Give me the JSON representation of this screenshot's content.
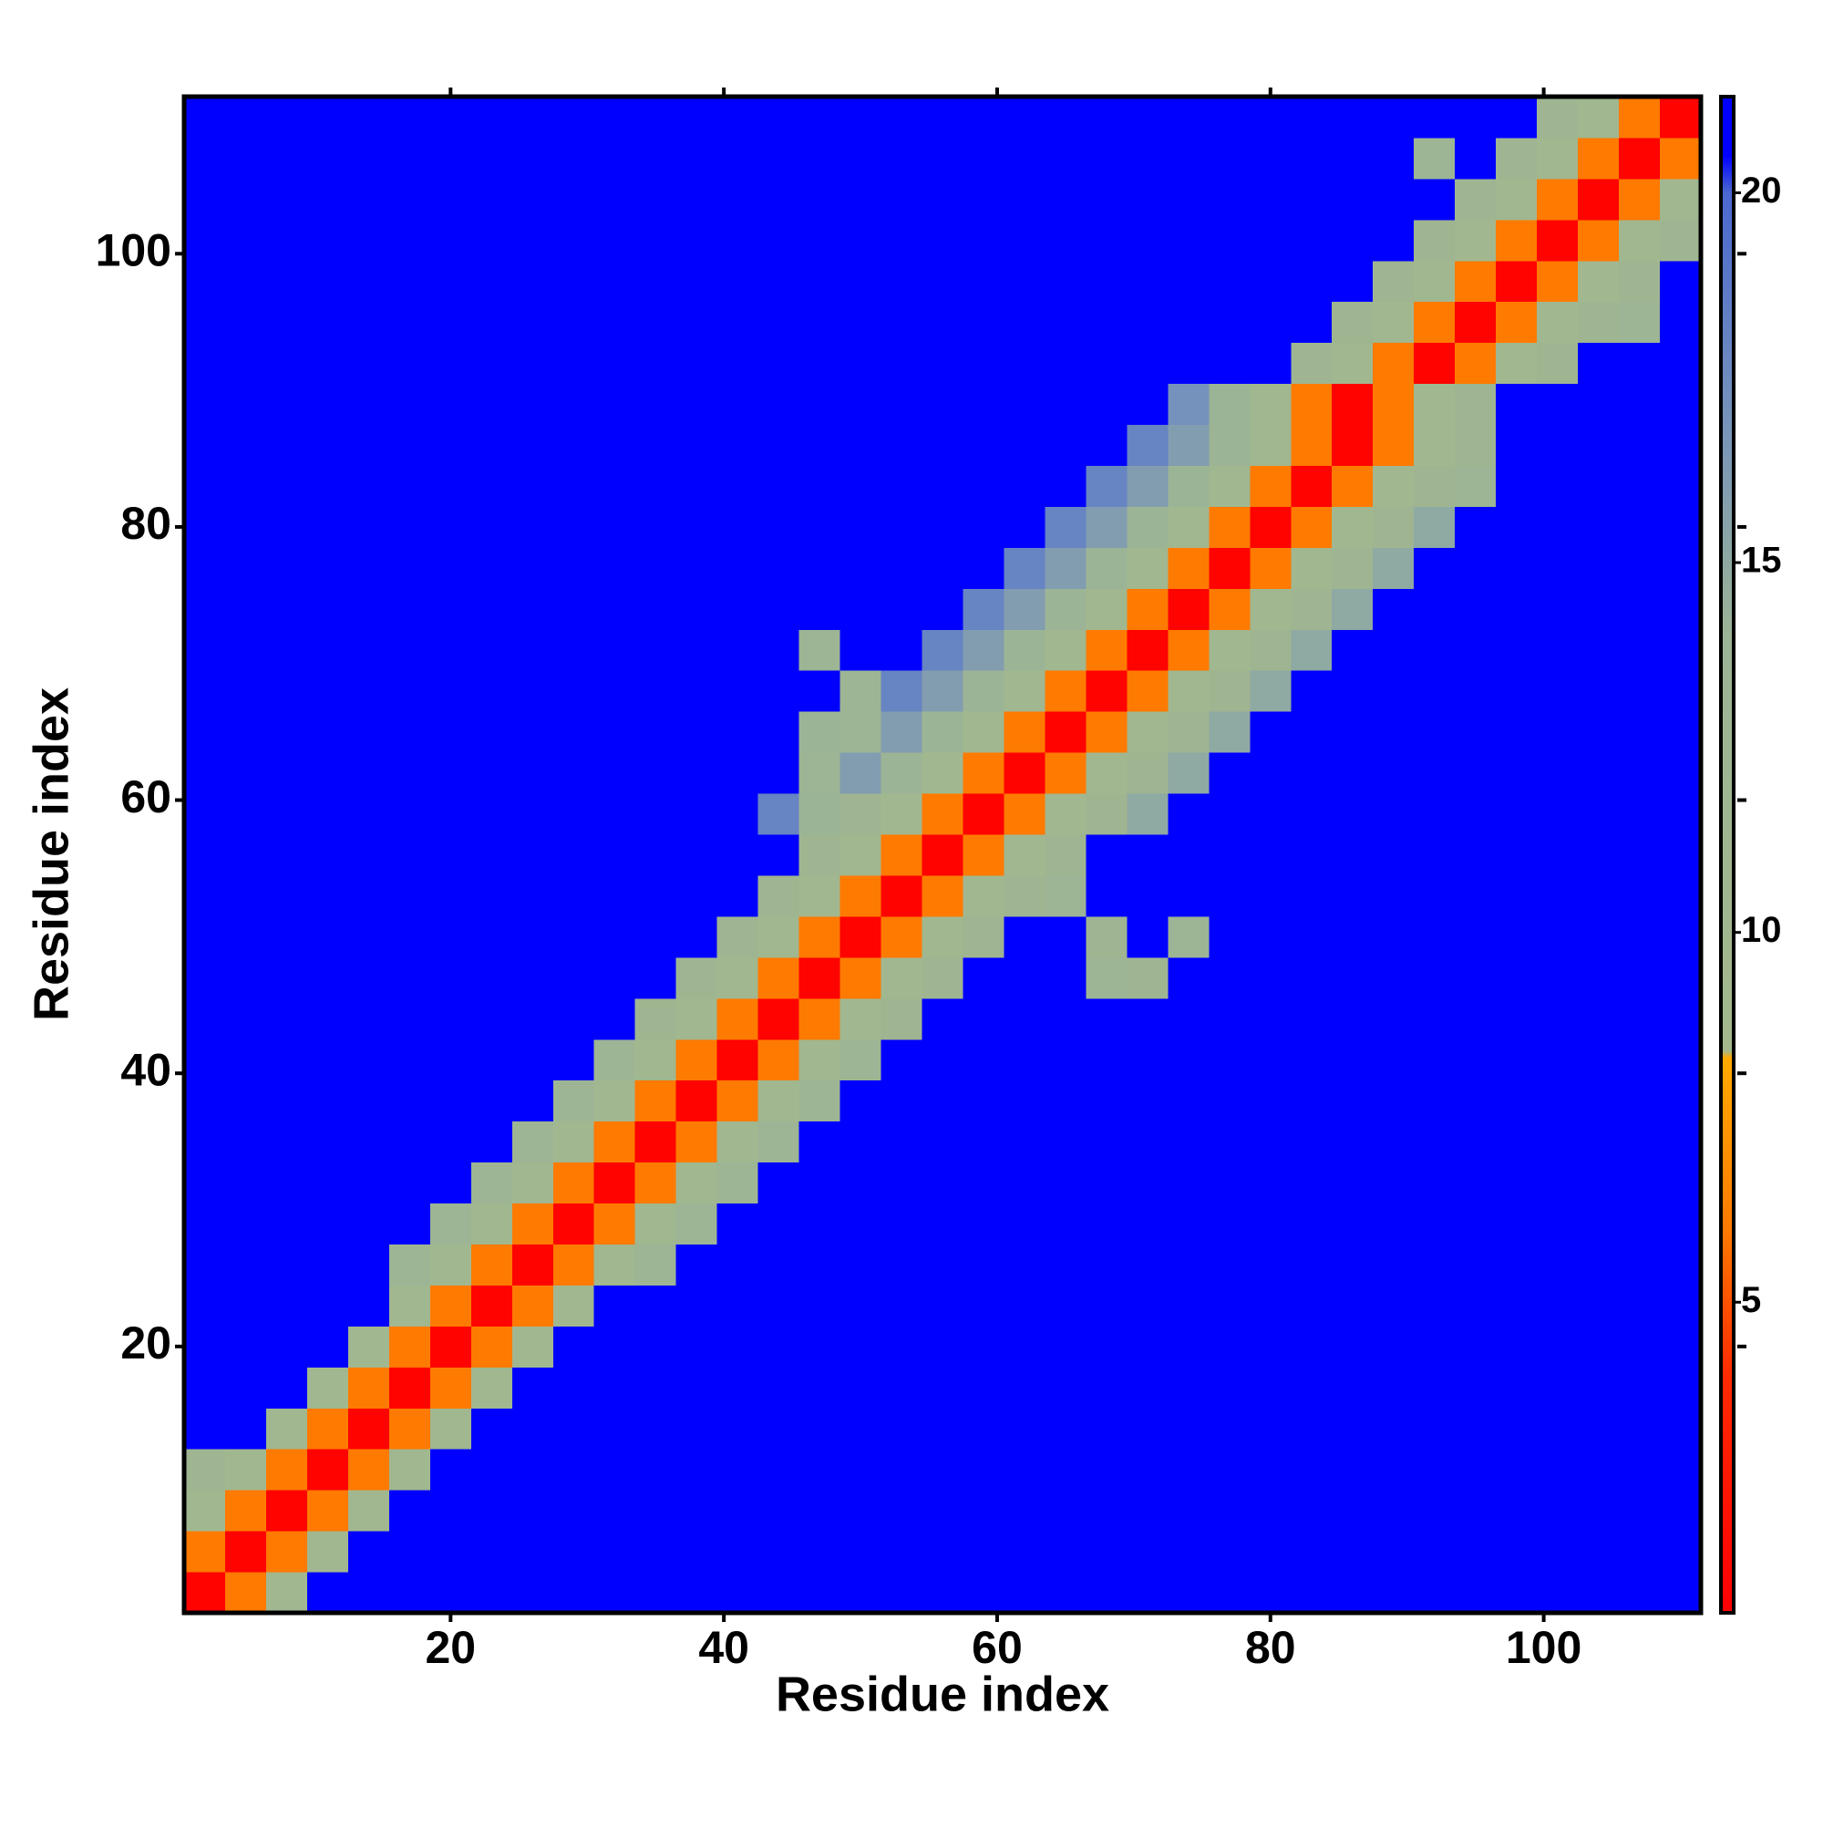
{
  "chart_data": {
    "type": "heatmap",
    "x_label": "Residue index",
    "y_label": "Residue index",
    "xbins": [
      0.5,
      3.5,
      6.5,
      9.5,
      12.5,
      15.5,
      18.5,
      21.5,
      24.5,
      27.5,
      30.5,
      33.5,
      36.5,
      39.5,
      42.5,
      45.5,
      48.5,
      51.5,
      54.5,
      57.5,
      60.5,
      63.5,
      66.5,
      69.5,
      72.5,
      75.5,
      78.5,
      81.5,
      84.5,
      87.5,
      90.5,
      93.5,
      96.5,
      99.5,
      102.5,
      105.5,
      108.5,
      111.5
    ],
    "ybins": [
      0.5,
      3.5,
      6.5,
      9.5,
      12.5,
      15.5,
      18.5,
      21.5,
      24.5,
      27.5,
      30.5,
      33.5,
      36.5,
      39.5,
      42.5,
      45.5,
      48.5,
      51.5,
      54.5,
      57.5,
      60.5,
      63.5,
      66.5,
      69.5,
      72.5,
      75.5,
      78.5,
      81.5,
      84.5,
      87.5,
      90.5,
      93.5,
      96.5,
      99.5,
      102.5,
      105.5,
      108.5,
      111.5
    ],
    "xlim": [
      0.5,
      111.5
    ],
    "ylim": [
      0.5,
      111.5
    ],
    "xticks": [
      20,
      40,
      60,
      80,
      100
    ],
    "yticks": [
      20,
      40,
      60,
      80,
      100
    ],
    "zlim": [
      0.8,
      21.3
    ],
    "zticks": [
      5,
      10,
      15,
      20
    ],
    "colorscale": [
      [
        0.8,
        "#ff0000"
      ],
      [
        4,
        "#ff2a00"
      ],
      [
        6,
        "#ff7a00"
      ],
      [
        8.3,
        "#ffaa00"
      ],
      [
        8.4,
        "#a3b88c"
      ],
      [
        14,
        "#9cb496"
      ],
      [
        17,
        "#7592bc"
      ],
      [
        20,
        "#4a68d0"
      ],
      [
        20.5,
        "#0000ff"
      ],
      [
        21.3,
        "#0000ff"
      ]
    ],
    "z": [
      [
        1,
        6,
        10,
        21,
        21,
        21,
        21,
        21,
        21,
        21,
        21,
        21,
        21,
        21,
        21,
        21,
        21,
        21,
        21,
        21,
        21,
        21,
        21,
        21,
        21,
        21,
        21,
        21,
        21,
        21,
        21,
        21,
        21,
        21,
        21,
        21,
        21
      ],
      [
        6,
        1,
        6,
        10,
        21,
        21,
        21,
        21,
        21,
        21,
        21,
        21,
        21,
        21,
        21,
        21,
        21,
        21,
        21,
        21,
        21,
        21,
        21,
        21,
        21,
        21,
        21,
        21,
        21,
        21,
        21,
        21,
        21,
        21,
        21,
        21,
        21
      ],
      [
        10,
        6,
        1,
        6,
        10,
        21,
        21,
        21,
        21,
        21,
        21,
        21,
        21,
        21,
        21,
        21,
        21,
        21,
        21,
        21,
        21,
        21,
        21,
        21,
        21,
        21,
        21,
        21,
        21,
        21,
        21,
        21,
        21,
        21,
        21,
        21,
        21
      ],
      [
        12,
        10,
        6,
        1,
        6,
        10,
        21,
        21,
        21,
        21,
        21,
        21,
        21,
        21,
        21,
        21,
        21,
        21,
        21,
        21,
        21,
        21,
        21,
        21,
        21,
        21,
        21,
        21,
        21,
        21,
        21,
        21,
        21,
        21,
        21,
        21,
        21
      ],
      [
        21,
        21,
        10,
        6,
        1,
        6,
        10,
        21,
        21,
        21,
        21,
        21,
        21,
        21,
        21,
        21,
        21,
        21,
        21,
        21,
        21,
        21,
        21,
        21,
        21,
        21,
        21,
        21,
        21,
        21,
        21,
        21,
        21,
        21,
        21,
        21,
        21
      ],
      [
        21,
        21,
        21,
        10,
        6,
        1,
        6,
        10,
        21,
        21,
        21,
        21,
        21,
        21,
        21,
        21,
        21,
        21,
        21,
        21,
        21,
        21,
        21,
        21,
        21,
        21,
        21,
        21,
        21,
        21,
        21,
        21,
        21,
        21,
        21,
        21,
        21
      ],
      [
        21,
        21,
        21,
        21,
        10,
        6,
        1,
        6,
        10,
        21,
        21,
        21,
        21,
        21,
        21,
        21,
        21,
        21,
        21,
        21,
        21,
        21,
        21,
        21,
        21,
        21,
        21,
        21,
        21,
        21,
        21,
        21,
        21,
        21,
        21,
        21,
        21
      ],
      [
        21,
        21,
        21,
        21,
        21,
        10,
        6,
        1,
        6,
        10,
        21,
        21,
        21,
        21,
        21,
        21,
        21,
        21,
        21,
        21,
        21,
        21,
        21,
        21,
        21,
        21,
        21,
        21,
        21,
        21,
        21,
        21,
        21,
        21,
        21,
        21,
        21
      ],
      [
        21,
        21,
        21,
        21,
        21,
        13,
        10,
        6,
        1,
        6,
        10,
        13,
        21,
        21,
        21,
        21,
        21,
        21,
        21,
        21,
        21,
        21,
        21,
        21,
        21,
        21,
        21,
        21,
        21,
        21,
        21,
        21,
        21,
        21,
        21,
        21,
        21
      ],
      [
        21,
        21,
        21,
        21,
        21,
        21,
        13,
        10,
        6,
        1,
        6,
        10,
        13,
        21,
        21,
        21,
        21,
        21,
        21,
        21,
        21,
        21,
        21,
        21,
        21,
        21,
        21,
        21,
        21,
        21,
        21,
        21,
        21,
        21,
        21,
        21,
        21
      ],
      [
        21,
        21,
        21,
        21,
        21,
        21,
        21,
        13,
        10,
        6,
        1,
        6,
        10,
        13,
        21,
        21,
        21,
        21,
        21,
        21,
        21,
        21,
        21,
        21,
        21,
        21,
        21,
        21,
        21,
        21,
        21,
        21,
        21,
        21,
        21,
        21,
        21
      ],
      [
        21,
        21,
        21,
        21,
        21,
        21,
        21,
        21,
        13,
        10,
        6,
        1,
        6,
        10,
        13,
        21,
        21,
        21,
        21,
        21,
        21,
        21,
        21,
        21,
        21,
        21,
        21,
        21,
        21,
        21,
        21,
        21,
        21,
        21,
        21,
        21,
        21
      ],
      [
        21,
        21,
        21,
        21,
        21,
        21,
        21,
        21,
        21,
        13,
        10,
        6,
        1,
        6,
        10,
        13,
        21,
        21,
        21,
        21,
        21,
        21,
        21,
        21,
        21,
        21,
        21,
        21,
        21,
        21,
        21,
        21,
        21,
        21,
        21,
        21,
        21
      ],
      [
        21,
        21,
        21,
        21,
        21,
        21,
        21,
        21,
        21,
        21,
        13,
        10,
        6,
        1,
        6,
        10,
        13,
        21,
        21,
        21,
        21,
        21,
        21,
        21,
        21,
        21,
        21,
        21,
        21,
        21,
        21,
        21,
        21,
        21,
        21,
        21,
        21
      ],
      [
        21,
        21,
        21,
        21,
        21,
        21,
        21,
        21,
        21,
        21,
        21,
        12,
        10,
        6,
        1,
        6,
        10,
        12,
        21,
        21,
        21,
        21,
        21,
        21,
        21,
        21,
        21,
        21,
        21,
        21,
        21,
        21,
        21,
        21,
        21,
        21,
        21
      ],
      [
        21,
        21,
        21,
        21,
        21,
        21,
        21,
        21,
        21,
        21,
        21,
        21,
        12,
        10,
        6,
        1,
        6,
        10,
        12,
        21,
        21,
        21,
        13,
        12,
        21,
        21,
        21,
        21,
        21,
        21,
        21,
        21,
        21,
        21,
        21,
        21,
        21
      ],
      [
        21,
        21,
        21,
        21,
        21,
        21,
        21,
        21,
        21,
        21,
        21,
        21,
        21,
        12,
        10,
        6,
        1,
        6,
        10,
        12,
        21,
        21,
        12,
        21,
        13,
        21,
        21,
        21,
        21,
        21,
        21,
        21,
        21,
        21,
        21,
        21,
        21
      ],
      [
        21,
        21,
        21,
        21,
        21,
        21,
        21,
        21,
        21,
        21,
        21,
        21,
        21,
        21,
        12,
        10,
        6,
        1,
        6,
        10,
        12,
        13,
        21,
        21,
        21,
        21,
        21,
        21,
        21,
        21,
        21,
        21,
        21,
        21,
        21,
        21,
        21
      ],
      [
        21,
        21,
        21,
        21,
        21,
        21,
        21,
        21,
        21,
        21,
        21,
        21,
        21,
        21,
        21,
        12,
        10,
        6,
        1,
        6,
        10,
        12,
        21,
        21,
        21,
        21,
        21,
        21,
        21,
        21,
        21,
        21,
        21,
        21,
        21,
        21,
        21
      ],
      [
        21,
        21,
        21,
        21,
        21,
        21,
        21,
        21,
        21,
        21,
        21,
        21,
        21,
        21,
        18,
        14,
        12,
        10,
        6,
        1,
        6,
        10,
        12,
        15,
        21,
        21,
        21,
        21,
        21,
        21,
        21,
        21,
        21,
        21,
        21,
        21,
        21
      ],
      [
        21,
        21,
        21,
        21,
        21,
        21,
        21,
        21,
        21,
        21,
        21,
        21,
        21,
        21,
        21,
        13,
        16,
        14,
        10,
        6,
        1,
        6,
        10,
        12,
        15,
        21,
        21,
        21,
        21,
        21,
        21,
        21,
        21,
        21,
        21,
        21,
        21
      ],
      [
        21,
        21,
        21,
        21,
        21,
        21,
        21,
        21,
        21,
        21,
        21,
        21,
        21,
        21,
        21,
        14,
        13,
        16,
        14,
        10,
        6,
        1,
        6,
        10,
        12,
        15,
        21,
        21,
        21,
        21,
        21,
        21,
        21,
        21,
        21,
        21,
        21
      ],
      [
        21,
        21,
        21,
        21,
        21,
        21,
        21,
        21,
        21,
        21,
        21,
        21,
        21,
        21,
        21,
        21,
        13,
        18,
        16,
        14,
        10,
        6,
        1,
        6,
        10,
        12,
        15,
        21,
        21,
        21,
        21,
        21,
        21,
        21,
        21,
        21,
        21
      ],
      [
        21,
        21,
        21,
        21,
        21,
        21,
        21,
        21,
        21,
        21,
        21,
        21,
        21,
        21,
        21,
        13,
        21,
        21,
        18,
        16,
        14,
        10,
        6,
        1,
        6,
        10,
        12,
        15,
        21,
        21,
        21,
        21,
        21,
        21,
        21,
        21,
        21
      ],
      [
        21,
        21,
        21,
        21,
        21,
        21,
        21,
        21,
        21,
        21,
        21,
        21,
        21,
        21,
        21,
        21,
        21,
        21,
        21,
        18,
        16,
        14,
        10,
        6,
        1,
        6,
        10,
        12,
        15,
        21,
        21,
        21,
        21,
        21,
        21,
        21,
        21
      ],
      [
        21,
        21,
        21,
        21,
        21,
        21,
        21,
        21,
        21,
        21,
        21,
        21,
        21,
        21,
        21,
        21,
        21,
        21,
        21,
        21,
        18,
        16,
        14,
        10,
        6,
        1,
        6,
        10,
        12,
        15,
        21,
        21,
        21,
        21,
        21,
        21,
        21
      ],
      [
        21,
        21,
        21,
        21,
        21,
        21,
        21,
        21,
        21,
        21,
        21,
        21,
        21,
        21,
        21,
        21,
        21,
        21,
        21,
        21,
        21,
        18,
        16,
        14,
        10,
        6,
        1,
        6,
        10,
        12,
        15,
        21,
        21,
        21,
        21,
        21,
        21
      ],
      [
        21,
        21,
        21,
        21,
        21,
        21,
        21,
        21,
        21,
        21,
        21,
        21,
        21,
        21,
        21,
        21,
        21,
        21,
        21,
        21,
        21,
        21,
        18,
        16,
        14,
        10,
        6,
        1,
        6,
        10,
        12,
        13,
        21,
        21,
        21,
        21,
        21
      ],
      [
        21,
        21,
        21,
        21,
        21,
        21,
        21,
        21,
        21,
        21,
        21,
        21,
        21,
        21,
        21,
        21,
        21,
        21,
        21,
        21,
        21,
        21,
        21,
        18,
        16,
        14,
        10,
        6,
        1,
        6,
        10,
        12,
        21,
        21,
        21,
        21,
        21
      ],
      [
        21,
        21,
        21,
        21,
        21,
        21,
        21,
        21,
        21,
        21,
        21,
        21,
        21,
        21,
        21,
        21,
        21,
        21,
        21,
        21,
        21,
        21,
        21,
        21,
        17,
        14,
        10,
        6,
        1,
        6,
        10,
        12,
        21,
        21,
        21,
        21,
        21
      ],
      [
        21,
        21,
        21,
        21,
        21,
        21,
        21,
        21,
        21,
        21,
        21,
        21,
        21,
        21,
        21,
        21,
        21,
        21,
        21,
        21,
        21,
        21,
        21,
        21,
        21,
        21,
        21,
        12,
        10,
        6,
        1,
        6,
        10,
        12,
        21,
        21,
        21
      ],
      [
        21,
        21,
        21,
        21,
        21,
        21,
        21,
        21,
        21,
        21,
        21,
        21,
        21,
        21,
        21,
        21,
        21,
        21,
        21,
        21,
        21,
        21,
        21,
        21,
        21,
        21,
        21,
        21,
        12,
        10,
        6,
        1,
        6,
        10,
        12,
        13,
        21
      ],
      [
        21,
        21,
        21,
        21,
        21,
        21,
        21,
        21,
        21,
        21,
        21,
        21,
        21,
        21,
        21,
        21,
        21,
        21,
        21,
        21,
        21,
        21,
        21,
        21,
        21,
        21,
        21,
        21,
        21,
        12,
        10,
        6,
        1,
        6,
        10,
        12,
        21
      ],
      [
        21,
        21,
        21,
        21,
        21,
        21,
        21,
        21,
        21,
        21,
        21,
        21,
        21,
        21,
        21,
        21,
        21,
        21,
        21,
        21,
        21,
        21,
        21,
        21,
        21,
        21,
        21,
        21,
        21,
        21,
        12,
        10,
        6,
        1,
        6,
        10,
        12
      ],
      [
        21,
        21,
        21,
        21,
        21,
        21,
        21,
        21,
        21,
        21,
        21,
        21,
        21,
        21,
        21,
        21,
        21,
        21,
        21,
        21,
        21,
        21,
        21,
        21,
        21,
        21,
        21,
        21,
        21,
        21,
        21,
        12,
        10,
        6,
        1,
        6,
        10
      ],
      [
        21,
        21,
        21,
        21,
        21,
        21,
        21,
        21,
        21,
        21,
        21,
        21,
        21,
        21,
        21,
        21,
        21,
        21,
        21,
        21,
        21,
        21,
        21,
        21,
        21,
        21,
        21,
        21,
        21,
        21,
        13,
        21,
        12,
        10,
        6,
        1,
        6
      ],
      [
        21,
        21,
        21,
        21,
        21,
        21,
        21,
        21,
        21,
        21,
        21,
        21,
        21,
        21,
        21,
        21,
        21,
        21,
        21,
        21,
        21,
        21,
        21,
        21,
        21,
        21,
        21,
        21,
        21,
        21,
        21,
        21,
        21,
        12,
        10,
        6,
        1
      ]
    ]
  }
}
